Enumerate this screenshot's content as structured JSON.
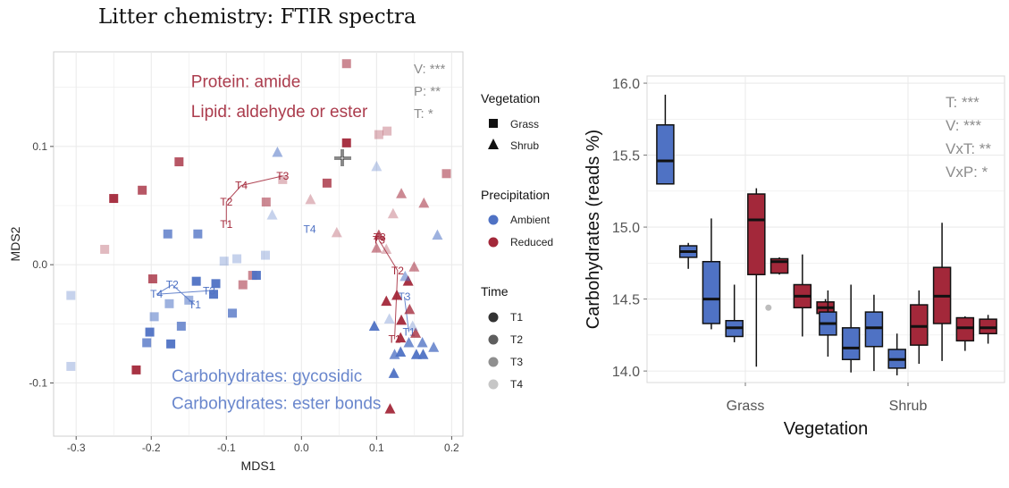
{
  "slide": {
    "title": "Litter chemistry: FTIR spectra"
  },
  "colors": {
    "ambient": "#4f72c4",
    "reduced": "#a3283a",
    "panel_bg": "#ffffff",
    "grid": "#ebebeb"
  },
  "chart_data": [
    {
      "type": "scatter",
      "title": "",
      "xlabel": "MDS1",
      "ylabel": "MDS2",
      "xlim": [
        -0.33,
        0.215
      ],
      "ylim": [
        -0.145,
        0.18
      ],
      "xticks": [
        -0.3,
        -0.2,
        -0.1,
        0.0,
        0.1,
        0.2
      ],
      "xtick_labels": [
        "-0.3",
        "-0.2",
        "-0.1",
        "0.0",
        "0.1",
        "0.2"
      ],
      "yticks": [
        -0.1,
        0.0,
        0.1
      ],
      "ytick_labels": [
        "-0.1",
        "0.0",
        "0.1"
      ],
      "grid": true,
      "stats": [
        "V: ***",
        "P: **",
        "T: *"
      ],
      "annotations": [
        {
          "text": "Protein: amide",
          "color": "reduced",
          "x": -0.147,
          "y": 0.15
        },
        {
          "text": "Lipid: aldehyde or ester",
          "color": "reduced",
          "x": -0.147,
          "y": 0.125
        },
        {
          "text": "Carbohydrates: gycosidic",
          "color": "ambient",
          "x": -0.173,
          "y": -0.099
        },
        {
          "text": "Carbohydrates: ester bonds",
          "color": "ambient",
          "x": -0.173,
          "y": -0.122
        }
      ],
      "legend": {
        "placement": "right",
        "vegetation": {
          "title": "Vegetation",
          "items": [
            "Grass",
            "Shrub"
          ]
        },
        "precipitation": {
          "title": "Precipitation",
          "items": [
            "Ambient",
            "Reduced"
          ]
        },
        "time": {
          "title": "Time",
          "items": [
            "T1",
            "T2",
            "T3",
            "T4"
          ]
        }
      },
      "centroids": [
        {
          "group": "Grass-Reduced",
          "color": "reduced",
          "labels": [
            "T1",
            "T2",
            "T4",
            "T3"
          ],
          "x": [
            -0.1,
            -0.1,
            -0.08,
            -0.025
          ],
          "y": [
            0.034,
            0.053,
            0.067,
            0.075
          ]
        },
        {
          "group": "Grass-Ambient",
          "color": "ambient",
          "labels": [
            "T1",
            "T2",
            "T4",
            "T3"
          ],
          "x": [
            -0.142,
            -0.172,
            -0.193,
            -0.123
          ],
          "y": [
            -0.034,
            -0.017,
            -0.025,
            -0.022
          ]
        },
        {
          "group": "Shrub-Reduced",
          "color": "reduced",
          "labels": [
            "T1",
            "T2",
            "T3"
          ],
          "x": [
            0.124,
            0.128,
            0.103
          ],
          "y": [
            -0.063,
            -0.005,
            0.021
          ]
        },
        {
          "group": "Shrub-Ambient",
          "color": "ambient",
          "labels": [
            "T1",
            "T3"
          ],
          "x": [
            0.143,
            0.137
          ],
          "y": [
            -0.057,
            -0.027
          ]
        }
      ],
      "centroid_extra_labels": [
        {
          "text": "T4",
          "color": "ambient",
          "x": 0.011,
          "y": 0.03
        },
        {
          "text": "T3",
          "color": "reduced",
          "x": 0.104,
          "y": 0.023
        }
      ],
      "points": [
        {
          "shape": "square",
          "precip": "reduced",
          "time": 1,
          "x": -0.25,
          "y": 0.056
        },
        {
          "shape": "square",
          "precip": "reduced",
          "time": 1,
          "x": -0.22,
          "y": -0.089
        },
        {
          "shape": "square",
          "precip": "reduced",
          "time": 1,
          "x": 0.06,
          "y": 0.103
        },
        {
          "shape": "square",
          "precip": "reduced",
          "time": 2,
          "x": -0.212,
          "y": 0.063
        },
        {
          "shape": "square",
          "precip": "reduced",
          "time": 2,
          "x": -0.163,
          "y": 0.087
        },
        {
          "shape": "square",
          "precip": "reduced",
          "time": 2,
          "x": -0.198,
          "y": -0.012
        },
        {
          "shape": "square",
          "precip": "reduced",
          "time": 2,
          "x": 0.034,
          "y": 0.069
        },
        {
          "shape": "square",
          "precip": "reduced",
          "time": 3,
          "x": -0.065,
          "y": -0.009
        },
        {
          "shape": "square",
          "precip": "reduced",
          "time": 3,
          "x": -0.047,
          "y": 0.053
        },
        {
          "shape": "square",
          "precip": "reduced",
          "time": 3,
          "x": 0.06,
          "y": 0.17
        },
        {
          "shape": "square",
          "precip": "reduced",
          "time": 3,
          "x": 0.193,
          "y": 0.077
        },
        {
          "shape": "square",
          "precip": "reduced",
          "time": 3,
          "x": -0.078,
          "y": -0.017
        },
        {
          "shape": "square",
          "precip": "reduced",
          "time": 4,
          "x": -0.262,
          "y": 0.013
        },
        {
          "shape": "square",
          "precip": "reduced",
          "time": 4,
          "x": 0.103,
          "y": 0.11
        },
        {
          "shape": "square",
          "precip": "reduced",
          "time": 4,
          "x": 0.114,
          "y": 0.113
        },
        {
          "shape": "square",
          "precip": "reduced",
          "time": 4,
          "x": -0.025,
          "y": 0.072
        },
        {
          "shape": "square",
          "precip": "ambient",
          "time": 1,
          "x": -0.202,
          "y": -0.057
        },
        {
          "shape": "square",
          "precip": "ambient",
          "time": 1,
          "x": -0.174,
          "y": -0.067
        },
        {
          "shape": "square",
          "precip": "ambient",
          "time": 1,
          "x": -0.14,
          "y": -0.014
        },
        {
          "shape": "square",
          "precip": "ambient",
          "time": 1,
          "x": -0.06,
          "y": -0.009
        },
        {
          "shape": "square",
          "precip": "ambient",
          "time": 1,
          "x": -0.114,
          "y": -0.016
        },
        {
          "shape": "square",
          "precip": "ambient",
          "time": 1,
          "x": -0.117,
          "y": -0.025
        },
        {
          "shape": "square",
          "precip": "ambient",
          "time": 2,
          "x": -0.206,
          "y": -0.066
        },
        {
          "shape": "square",
          "precip": "ambient",
          "time": 2,
          "x": -0.178,
          "y": 0.026
        },
        {
          "shape": "square",
          "precip": "ambient",
          "time": 2,
          "x": -0.138,
          "y": 0.026
        },
        {
          "shape": "square",
          "precip": "ambient",
          "time": 2,
          "x": -0.16,
          "y": -0.052
        },
        {
          "shape": "square",
          "precip": "ambient",
          "time": 2,
          "x": -0.092,
          "y": -0.041
        },
        {
          "shape": "square",
          "precip": "ambient",
          "time": 3,
          "x": -0.196,
          "y": -0.044
        },
        {
          "shape": "square",
          "precip": "ambient",
          "time": 3,
          "x": -0.176,
          "y": -0.033
        },
        {
          "shape": "square",
          "precip": "ambient",
          "time": 3,
          "x": -0.15,
          "y": -0.03
        },
        {
          "shape": "square",
          "precip": "ambient",
          "time": 4,
          "x": -0.307,
          "y": -0.086
        },
        {
          "shape": "square",
          "precip": "ambient",
          "time": 4,
          "x": -0.307,
          "y": -0.026
        },
        {
          "shape": "square",
          "precip": "ambient",
          "time": 4,
          "x": -0.086,
          "y": 0.005
        },
        {
          "shape": "square",
          "precip": "ambient",
          "time": 4,
          "x": -0.048,
          "y": 0.008
        },
        {
          "shape": "square",
          "precip": "ambient",
          "time": 4,
          "x": -0.103,
          "y": 0.003
        },
        {
          "shape": "triangle",
          "precip": "reduced",
          "time": 1,
          "x": 0.113,
          "y": -0.031
        },
        {
          "shape": "triangle",
          "precip": "reduced",
          "time": 1,
          "x": 0.142,
          "y": -0.014
        },
        {
          "shape": "triangle",
          "precip": "reduced",
          "time": 1,
          "x": 0.127,
          "y": -0.026
        },
        {
          "shape": "triangle",
          "precip": "reduced",
          "time": 1,
          "x": 0.133,
          "y": -0.047
        },
        {
          "shape": "triangle",
          "precip": "reduced",
          "time": 1,
          "x": 0.118,
          "y": -0.122
        },
        {
          "shape": "triangle",
          "precip": "reduced",
          "time": 1,
          "x": 0.132,
          "y": -0.062
        },
        {
          "shape": "triangle",
          "precip": "reduced",
          "time": 2,
          "x": 0.144,
          "y": -0.038
        },
        {
          "shape": "triangle",
          "precip": "reduced",
          "time": 2,
          "x": 0.152,
          "y": -0.058
        },
        {
          "shape": "triangle",
          "precip": "reduced",
          "time": 2,
          "x": 0.103,
          "y": 0.025
        },
        {
          "shape": "triangle",
          "precip": "reduced",
          "time": 3,
          "x": 0.133,
          "y": 0.06
        },
        {
          "shape": "triangle",
          "precip": "reduced",
          "time": 3,
          "x": 0.163,
          "y": 0.052
        },
        {
          "shape": "triangle",
          "precip": "reduced",
          "time": 3,
          "x": 0.1,
          "y": 0.014
        },
        {
          "shape": "triangle",
          "precip": "reduced",
          "time": 3,
          "x": 0.15,
          "y": -0.002
        },
        {
          "shape": "triangle",
          "precip": "reduced",
          "time": 4,
          "x": 0.012,
          "y": 0.055
        },
        {
          "shape": "triangle",
          "precip": "reduced",
          "time": 4,
          "x": 0.047,
          "y": 0.027
        },
        {
          "shape": "triangle",
          "precip": "reduced",
          "time": 4,
          "x": 0.122,
          "y": 0.043
        },
        {
          "shape": "triangle",
          "precip": "reduced",
          "time": 4,
          "x": 0.113,
          "y": 0.013
        },
        {
          "shape": "triangle",
          "precip": "ambient",
          "time": 1,
          "x": 0.097,
          "y": -0.052
        },
        {
          "shape": "triangle",
          "precip": "ambient",
          "time": 1,
          "x": 0.123,
          "y": -0.092
        },
        {
          "shape": "triangle",
          "precip": "ambient",
          "time": 1,
          "x": 0.162,
          "y": -0.076
        },
        {
          "shape": "triangle",
          "precip": "ambient",
          "time": 1,
          "x": 0.153,
          "y": -0.076
        },
        {
          "shape": "triangle",
          "precip": "ambient",
          "time": 1,
          "x": 0.132,
          "y": -0.074
        },
        {
          "shape": "triangle",
          "precip": "ambient",
          "time": 2,
          "x": 0.124,
          "y": -0.076
        },
        {
          "shape": "triangle",
          "precip": "ambient",
          "time": 2,
          "x": 0.143,
          "y": -0.066
        },
        {
          "shape": "triangle",
          "precip": "ambient",
          "time": 2,
          "x": 0.176,
          "y": -0.07
        },
        {
          "shape": "triangle",
          "precip": "ambient",
          "time": 2,
          "x": 0.161,
          "y": -0.066
        },
        {
          "shape": "triangle",
          "precip": "ambient",
          "time": 3,
          "x": -0.032,
          "y": 0.095
        },
        {
          "shape": "triangle",
          "precip": "ambient",
          "time": 3,
          "x": 0.181,
          "y": 0.025
        },
        {
          "shape": "triangle",
          "precip": "ambient",
          "time": 3,
          "x": 0.138,
          "y": -0.01
        },
        {
          "shape": "triangle",
          "precip": "ambient",
          "time": 4,
          "x": -0.039,
          "y": 0.042
        },
        {
          "shape": "triangle",
          "precip": "ambient",
          "time": 4,
          "x": 0.1,
          "y": 0.083
        },
        {
          "shape": "triangle",
          "precip": "ambient",
          "time": 4,
          "x": 0.117,
          "y": -0.046
        },
        {
          "shape": "triangle",
          "precip": "ambient",
          "time": 4,
          "x": 0.148,
          "y": -0.052
        }
      ]
    },
    {
      "type": "box",
      "title": "",
      "xlabel": "Vegetation",
      "ylabel": "Carbohydrates (reads %)",
      "categories": [
        "Grass",
        "Shrub"
      ],
      "ylim": [
        13.92,
        16.05
      ],
      "yticks": [
        14.0,
        14.5,
        15.0,
        15.5,
        16.0
      ],
      "ytick_labels": [
        "14.0",
        "14.5",
        "15.0",
        "15.5",
        "16.0"
      ],
      "grid": true,
      "stats": [
        "T: ***",
        "V: ***",
        "VxT: **",
        "VxP: *"
      ],
      "boxes": [
        {
          "category": "Grass",
          "precip": "ambient",
          "min": 15.3,
          "q1": 15.3,
          "median": 15.46,
          "q3": 15.71,
          "max": 15.92
        },
        {
          "category": "Grass",
          "precip": "ambient",
          "min": 14.71,
          "q1": 14.79,
          "median": 14.83,
          "q3": 14.87,
          "max": 14.89
        },
        {
          "category": "Grass",
          "precip": "ambient",
          "min": 14.29,
          "q1": 14.33,
          "median": 14.5,
          "q3": 14.76,
          "max": 15.06
        },
        {
          "category": "Grass",
          "precip": "ambient",
          "min": 14.2,
          "q1": 14.24,
          "median": 14.3,
          "q3": 14.35,
          "max": 14.6
        },
        {
          "category": "Grass",
          "precip": "reduced",
          "min": 14.03,
          "q1": 14.67,
          "median": 15.05,
          "q3": 15.23,
          "max": 15.27
        },
        {
          "category": "Grass",
          "precip": "reduced",
          "min": 14.67,
          "q1": 14.68,
          "median": 14.76,
          "q3": 14.78,
          "max": 14.79
        },
        {
          "category": "Grass",
          "precip": "reduced",
          "min": 14.24,
          "q1": 14.44,
          "median": 14.52,
          "q3": 14.6,
          "max": 14.81
        },
        {
          "category": "Grass",
          "precip": "reduced",
          "min": 14.33,
          "q1": 14.4,
          "median": 14.44,
          "q3": 14.48,
          "max": 14.5
        },
        {
          "category": "Shrub",
          "precip": "ambient",
          "min": 14.1,
          "q1": 14.25,
          "median": 14.33,
          "q3": 14.41,
          "max": 14.56
        },
        {
          "category": "Shrub",
          "precip": "ambient",
          "min": 13.99,
          "q1": 14.08,
          "median": 14.16,
          "q3": 14.3,
          "max": 14.6
        },
        {
          "category": "Shrub",
          "precip": "ambient",
          "min": 14.0,
          "q1": 14.17,
          "median": 14.3,
          "q3": 14.41,
          "max": 14.53
        },
        {
          "category": "Shrub",
          "precip": "ambient",
          "min": 13.97,
          "q1": 14.02,
          "median": 14.08,
          "q3": 14.15,
          "max": 14.26
        },
        {
          "category": "Shrub",
          "precip": "reduced",
          "min": 14.05,
          "q1": 14.18,
          "median": 14.31,
          "q3": 14.46,
          "max": 14.56
        },
        {
          "category": "Shrub",
          "precip": "reduced",
          "min": 14.07,
          "q1": 14.33,
          "median": 14.52,
          "q3": 14.72,
          "max": 15.03
        },
        {
          "category": "Shrub",
          "precip": "reduced",
          "min": 14.14,
          "q1": 14.21,
          "median": 14.3,
          "q3": 14.37,
          "max": 14.38
        },
        {
          "category": "Shrub",
          "precip": "reduced",
          "min": 14.19,
          "q1": 14.26,
          "median": 14.3,
          "q3": 14.36,
          "max": 14.39
        }
      ],
      "outliers": [
        {
          "box_index": 4,
          "x_offset": 0.45,
          "y": 14.44
        }
      ]
    }
  ]
}
